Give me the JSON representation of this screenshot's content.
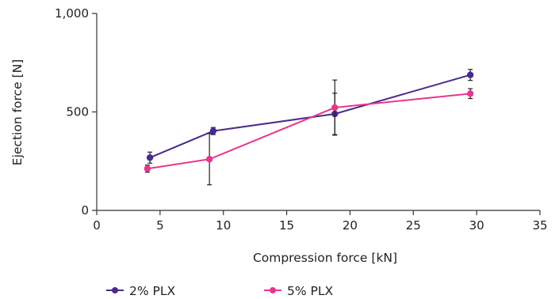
{
  "chart_data": {
    "type": "line",
    "title": "",
    "xlabel": "Compression force [kN]",
    "ylabel": "Ejection force [N]",
    "xlim": [
      0,
      35
    ],
    "ylim": [
      0,
      1000
    ],
    "xticks": [
      0,
      5,
      10,
      15,
      20,
      25,
      30,
      35
    ],
    "yticks": [
      0,
      500,
      1000
    ],
    "xtick_labels": [
      "0",
      "5",
      "10",
      "15",
      "20",
      "25",
      "30",
      "35"
    ],
    "ytick_labels": [
      "0",
      "500",
      "1,000"
    ],
    "grid": false,
    "legend_position": "bottom",
    "series": [
      {
        "name": "2% PLX",
        "color": "#4b2a8c",
        "x": [
          4.2,
          9.2,
          18.8,
          29.5
        ],
        "y": [
          268,
          403,
          490,
          688
        ],
        "err": [
          28,
          18,
          105,
          28
        ]
      },
      {
        "name": "5% PLX",
        "color": "#e6368f",
        "x": [
          4.0,
          8.9,
          18.8,
          29.5
        ],
        "y": [
          212,
          260,
          522,
          593
        ],
        "err": [
          18,
          130,
          140,
          25
        ]
      }
    ]
  }
}
